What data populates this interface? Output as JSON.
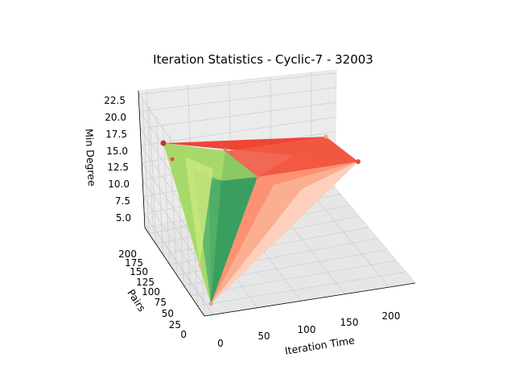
{
  "chart_data": {
    "type": "surface3d",
    "title": "Iteration Statistics - Cyclic-7 - 32003",
    "xlabel": "Iteration Time",
    "ylabel": "Pairs",
    "zlabel": "Min Degree",
    "xlim": [
      -10,
      230
    ],
    "ylim": [
      0,
      215
    ],
    "zlim": [
      3,
      23
    ],
    "x_ticks": [
      "0",
      "50",
      "100",
      "150",
      "200"
    ],
    "y_ticks": [
      "0",
      "25",
      "50",
      "75",
      "100",
      "125",
      "150",
      "175",
      "200"
    ],
    "z_ticks": [
      "5.0",
      "7.5",
      "10.0",
      "12.5",
      "15.0",
      "17.5",
      "20.0",
      "22.5"
    ],
    "grid": true,
    "colormap": [
      "#a6d96a",
      "#ffff66",
      "#66bd63",
      "#1a9850",
      "#fee0d2",
      "#fc9272",
      "#ef3b2c"
    ],
    "points": [
      {
        "x": 0,
        "y": 205,
        "z": 17
      },
      {
        "x": 8,
        "y": 190,
        "z": 16
      },
      {
        "x": 35,
        "y": 172,
        "z": 17.5
      },
      {
        "x": 75,
        "y": 150,
        "z": 15
      },
      {
        "x": 215,
        "y": 5,
        "z": 20
      },
      {
        "x": 170,
        "y": 95,
        "z": 21
      },
      {
        "x": 2,
        "y": 0,
        "z": 4
      }
    ]
  }
}
